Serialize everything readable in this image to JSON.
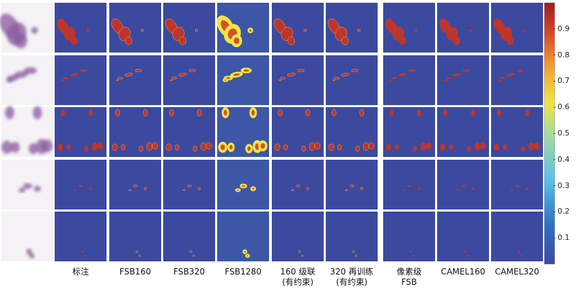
{
  "figure": {
    "column_labels": [
      "",
      "标注",
      "FSB160",
      "FSB320",
      "FSB1280",
      "160 级联\n(有约束)",
      "320 再训练\n(有约束)",
      "像素级\nFSB",
      "CAMEL160",
      "CAMEL320"
    ],
    "colorbar": {
      "ticks": [
        "0.9",
        "0.8",
        "0.7",
        "0.6",
        "0.5",
        "0.4",
        "0.3",
        "0.2",
        "0.1"
      ],
      "tick_values": [
        0.9,
        0.8,
        0.7,
        0.6,
        0.5,
        0.4,
        0.3,
        0.2,
        0.1
      ],
      "range": [
        0.0,
        1.0
      ],
      "colormap": "jet",
      "colors": [
        "#3b4a9e",
        "#2f88c9",
        "#57c2e8",
        "#f0e445",
        "#f08a2c",
        "#c0352a",
        "#a01c1c"
      ]
    },
    "heatmap_background": "#3b4a9e",
    "rows": 5
  }
}
